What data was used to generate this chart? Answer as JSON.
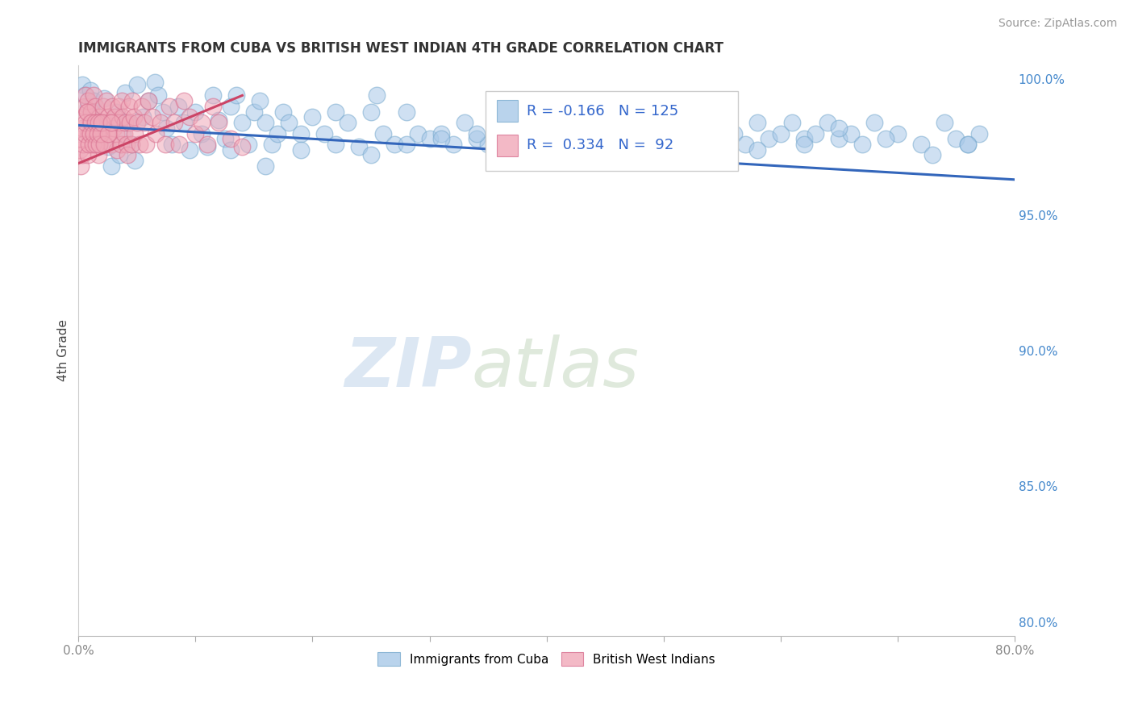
{
  "title": "IMMIGRANTS FROM CUBA VS BRITISH WEST INDIAN 4TH GRADE CORRELATION CHART",
  "source_text": "Source: ZipAtlas.com",
  "ylabel": "4th Grade",
  "xlim": [
    0.0,
    0.8
  ],
  "ylim": [
    0.795,
    1.005
  ],
  "x_ticks": [
    0.0,
    0.1,
    0.2,
    0.3,
    0.4,
    0.5,
    0.6,
    0.7,
    0.8
  ],
  "x_tick_labels": [
    "0.0%",
    "",
    "",
    "",
    "",
    "",
    "",
    "",
    "80.0%"
  ],
  "y_ticks_right": [
    0.8,
    0.85,
    0.9,
    0.95,
    1.0
  ],
  "y_tick_labels_right": [
    "80.0%",
    "85.0%",
    "90.0%",
    "95.0%",
    "100.0%"
  ],
  "legend_entries": [
    {
      "label": "Immigrants from Cuba",
      "color": "#a8c8e8",
      "R": "-0.166",
      "N": "125"
    },
    {
      "label": "British West Indians",
      "color": "#f0a8b8",
      "R": "0.334",
      "N": "92"
    }
  ],
  "blue_scatter_x": [
    0.003,
    0.005,
    0.008,
    0.01,
    0.012,
    0.013,
    0.015,
    0.018,
    0.02,
    0.022,
    0.025,
    0.028,
    0.032,
    0.035,
    0.038,
    0.04,
    0.042,
    0.045,
    0.048,
    0.05,
    0.055,
    0.06,
    0.065,
    0.068,
    0.072,
    0.075,
    0.08,
    0.085,
    0.09,
    0.095,
    0.1,
    0.105,
    0.11,
    0.115,
    0.12,
    0.125,
    0.13,
    0.135,
    0.14,
    0.145,
    0.15,
    0.155,
    0.16,
    0.165,
    0.17,
    0.175,
    0.18,
    0.19,
    0.2,
    0.21,
    0.22,
    0.23,
    0.24,
    0.25,
    0.255,
    0.26,
    0.27,
    0.28,
    0.29,
    0.3,
    0.31,
    0.32,
    0.33,
    0.34,
    0.35,
    0.36,
    0.37,
    0.38,
    0.39,
    0.4,
    0.41,
    0.42,
    0.43,
    0.44,
    0.45,
    0.46,
    0.47,
    0.48,
    0.49,
    0.5,
    0.51,
    0.52,
    0.53,
    0.54,
    0.55,
    0.56,
    0.57,
    0.58,
    0.59,
    0.6,
    0.61,
    0.62,
    0.63,
    0.64,
    0.65,
    0.66,
    0.67,
    0.68,
    0.7,
    0.72,
    0.74,
    0.75,
    0.76,
    0.77,
    0.76,
    0.73,
    0.69,
    0.65,
    0.62,
    0.58,
    0.55,
    0.52,
    0.49,
    0.46,
    0.43,
    0.4,
    0.37,
    0.34,
    0.31,
    0.28,
    0.25,
    0.22,
    0.19,
    0.16,
    0.13
  ],
  "blue_scatter_y": [
    0.998,
    0.994,
    0.99,
    0.996,
    0.988,
    0.992,
    0.985,
    0.978,
    0.982,
    0.993,
    0.975,
    0.968,
    0.988,
    0.972,
    0.98,
    0.995,
    0.984,
    0.976,
    0.97,
    0.998,
    0.986,
    0.992,
    0.999,
    0.994,
    0.988,
    0.982,
    0.976,
    0.99,
    0.984,
    0.974,
    0.988,
    0.98,
    0.975,
    0.994,
    0.985,
    0.978,
    0.99,
    0.994,
    0.984,
    0.976,
    0.988,
    0.992,
    0.984,
    0.976,
    0.98,
    0.988,
    0.984,
    0.98,
    0.986,
    0.98,
    0.988,
    0.984,
    0.975,
    0.988,
    0.994,
    0.98,
    0.976,
    0.988,
    0.98,
    0.978,
    0.98,
    0.976,
    0.984,
    0.978,
    0.976,
    0.98,
    0.984,
    0.978,
    0.976,
    0.974,
    0.984,
    0.978,
    0.98,
    0.976,
    0.984,
    0.978,
    0.982,
    0.984,
    0.978,
    0.976,
    0.984,
    0.98,
    0.982,
    0.984,
    0.978,
    0.98,
    0.976,
    0.984,
    0.978,
    0.98,
    0.984,
    0.978,
    0.98,
    0.984,
    0.978,
    0.98,
    0.976,
    0.984,
    0.98,
    0.976,
    0.984,
    0.978,
    0.976,
    0.98,
    0.976,
    0.972,
    0.978,
    0.982,
    0.976,
    0.974,
    0.98,
    0.976,
    0.972,
    0.974,
    0.976,
    0.972,
    0.976,
    0.98,
    0.978,
    0.976,
    0.972,
    0.976,
    0.974,
    0.968,
    0.974
  ],
  "pink_scatter_x": [
    0.001,
    0.002,
    0.003,
    0.004,
    0.005,
    0.006,
    0.007,
    0.008,
    0.009,
    0.01,
    0.011,
    0.012,
    0.013,
    0.014,
    0.015,
    0.016,
    0.017,
    0.018,
    0.019,
    0.02,
    0.021,
    0.022,
    0.023,
    0.024,
    0.025,
    0.026,
    0.027,
    0.028,
    0.029,
    0.03,
    0.031,
    0.032,
    0.033,
    0.034,
    0.035,
    0.036,
    0.037,
    0.038,
    0.039,
    0.04,
    0.041,
    0.042,
    0.043,
    0.044,
    0.045,
    0.046,
    0.047,
    0.048,
    0.05,
    0.052,
    0.054,
    0.056,
    0.058,
    0.06,
    0.063,
    0.066,
    0.07,
    0.074,
    0.078,
    0.082,
    0.086,
    0.09,
    0.095,
    0.1,
    0.105,
    0.11,
    0.115,
    0.12,
    0.13,
    0.14,
    0.002,
    0.003,
    0.004,
    0.005,
    0.006,
    0.007,
    0.008,
    0.009,
    0.01,
    0.011,
    0.012,
    0.013,
    0.014,
    0.015,
    0.016,
    0.017,
    0.018,
    0.019,
    0.02,
    0.022,
    0.025,
    0.028
  ],
  "pink_scatter_y": [
    0.974,
    0.978,
    0.982,
    0.986,
    0.99,
    0.994,
    0.988,
    0.992,
    0.98,
    0.984,
    0.988,
    0.98,
    0.994,
    0.99,
    0.984,
    0.976,
    0.972,
    0.986,
    0.98,
    0.982,
    0.99,
    0.984,
    0.976,
    0.992,
    0.986,
    0.98,
    0.984,
    0.976,
    0.99,
    0.982,
    0.986,
    0.98,
    0.974,
    0.99,
    0.984,
    0.976,
    0.992,
    0.986,
    0.98,
    0.984,
    0.976,
    0.972,
    0.99,
    0.984,
    0.976,
    0.992,
    0.986,
    0.98,
    0.984,
    0.976,
    0.99,
    0.984,
    0.976,
    0.992,
    0.986,
    0.98,
    0.984,
    0.976,
    0.99,
    0.984,
    0.976,
    0.992,
    0.986,
    0.98,
    0.984,
    0.976,
    0.99,
    0.984,
    0.978,
    0.975,
    0.968,
    0.972,
    0.976,
    0.98,
    0.984,
    0.988,
    0.972,
    0.976,
    0.98,
    0.984,
    0.976,
    0.98,
    0.984,
    0.976,
    0.98,
    0.984,
    0.976,
    0.98,
    0.984,
    0.976,
    0.98,
    0.984
  ],
  "blue_trend_x": [
    0.0,
    0.8
  ],
  "blue_trend_y": [
    0.983,
    0.963
  ],
  "pink_trend_x": [
    0.0,
    0.14
  ],
  "pink_trend_y": [
    0.969,
    0.994
  ],
  "blue_color": "#a8c8e8",
  "blue_edge_color": "#7aabcf",
  "pink_color": "#f0a8b8",
  "pink_edge_color": "#d87090",
  "blue_trend_color": "#3366bb",
  "pink_trend_color": "#cc4466",
  "watermark_zip": "ZIP",
  "watermark_atlas": "atlas",
  "background_color": "#ffffff",
  "grid_color": "#cccccc",
  "title_color": "#333333",
  "source_color": "#999999",
  "axis_label_color": "#444444",
  "tick_color_right": "#4488cc",
  "tick_color_x": "#888888"
}
